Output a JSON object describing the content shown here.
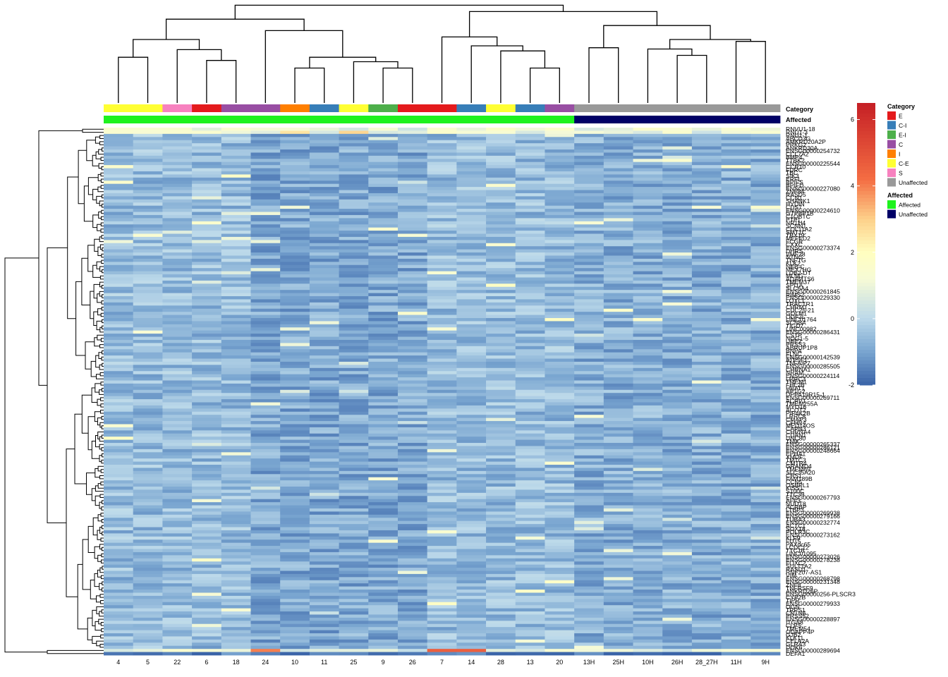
{
  "chart_data": {
    "type": "heatmap",
    "title": "",
    "color_scale": {
      "min": -2,
      "max": 6.5,
      "ticks": [
        -2,
        0,
        2,
        4,
        6
      ],
      "stops": [
        {
          "value": -2,
          "color": "#3a64a8"
        },
        {
          "value": -1,
          "color": "#79a5d0"
        },
        {
          "value": 0,
          "color": "#bcd9ea"
        },
        {
          "value": 1.2,
          "color": "#f7fbd6"
        },
        {
          "value": 2,
          "color": "#fffec0"
        },
        {
          "value": 3,
          "color": "#fdd08a"
        },
        {
          "value": 4.2,
          "color": "#f46d43"
        },
        {
          "value": 6.5,
          "color": "#c51f25"
        }
      ]
    },
    "columns": [
      "4",
      "5",
      "22",
      "6",
      "18",
      "24",
      "10",
      "11",
      "25",
      "9",
      "26",
      "7",
      "14",
      "28",
      "13",
      "20",
      "13H",
      "25H",
      "10H",
      "26H",
      "28_27H",
      "11H",
      "9H"
    ],
    "annotations": [
      {
        "name": "Category",
        "values": [
          "C-E",
          "C-E",
          "S",
          "E",
          "C",
          "C",
          "I",
          "C-I",
          "C-E",
          "E-I",
          "E",
          "E",
          "C-I",
          "C-E",
          "C-I",
          "C",
          "Unaffected",
          "Unaffected",
          "Unaffected",
          "Unaffected",
          "Unaffected",
          "Unaffected",
          "Unaffected"
        ]
      },
      {
        "name": "Affected",
        "values": [
          "Affected",
          "Affected",
          "Affected",
          "Affected",
          "Affected",
          "Affected",
          "Affected",
          "Affected",
          "Affected",
          "Affected",
          "Affected",
          "Affected",
          "Affected",
          "Affected",
          "Affected",
          "Affected",
          "Unaffected",
          "Unaffected",
          "Unaffected",
          "Unaffected",
          "Unaffected",
          "Unaffected",
          "Unaffected"
        ]
      }
    ],
    "legend": {
      "position": "right",
      "groups": [
        {
          "title": "Category",
          "items": [
            {
              "label": "E",
              "color": "#e41a1c"
            },
            {
              "label": "C-I",
              "color": "#377eb8"
            },
            {
              "label": "E-I",
              "color": "#4daf4a"
            },
            {
              "label": "C",
              "color": "#984ea3"
            },
            {
              "label": "I",
              "color": "#ff7f00"
            },
            {
              "label": "C-E",
              "color": "#ffff33"
            },
            {
              "label": "S",
              "color": "#f781bf"
            },
            {
              "label": "Unaffected",
              "color": "#999999"
            }
          ]
        },
        {
          "title": "Affected",
          "items": [
            {
              "label": "Affected",
              "color": "#1ef21e"
            },
            {
              "label": "Unaffected",
              "color": "#000066"
            }
          ]
        }
      ]
    },
    "row_labels": [
      "RNVU1-18",
      "RNU1-3",
      "RNU1-1",
      "ABCD3G",
      "AMKRD20A2P",
      "PRKG2",
      "ANKRD30A",
      "ENSG00000254732",
      "CCL7A2",
      "BMP4",
      "TTBK2",
      "ENSG00000225544",
      "CCR10",
      "FDRC",
      "TBC",
      "SIK3",
      "ERFL",
      "BPIFS",
      "BPIFD",
      "ENSG00000227080",
      "ZNF84",
      "RASD5",
      "CCN1",
      "SHANK1",
      "HYDIN",
      "CDS7",
      "ENSG00000224610",
      "GTPBP1B",
      "C1QBTC",
      "PTF1",
      "NR1H4",
      "SCNN1",
      "COL11A2",
      "SMT1C",
      "TBX19",
      "MEFED2",
      "FCGR",
      "CXXC",
      "ENSG00000273374",
      "DHRS",
      "VMF28",
      "NTNG",
      "TNFTG",
      "KLK2",
      "NEB-C",
      "MEX7HG",
      "LDB2-DT",
      "MLNG",
      "ADAMTS6",
      "TMEM37",
      "SPI1A",
      "SLC6A4",
      "ENSG00000261845",
      "RIMS2",
      "ENSG00000229330",
      "LOXL1",
      "TRACTR1",
      "CHRM1",
      "CDC25-21",
      "GOLM1",
      "ODF2L",
      "LINC01764",
      "SCN8A",
      "TIGD7",
      "LINC00982",
      "ENSG00000286431",
      "CSTP",
      "NOG1-5",
      "UBE2",
      "PRSS3",
      "ABRUP1P8",
      "BNPA",
      "FLNC",
      "ENSG00000142539",
      "ATP5F1",
      "TNFAIP7",
      "ENSG00000285505",
      "CHRNA1",
      "NRAM",
      "ENSG00000224114",
      "LRRC3",
      "TMEM1",
      "FHL2B",
      "HBAT1",
      "AP1G2",
      "DPPA19R15-1",
      "ENSG00000269711",
      "ACRV1",
      "TMEM255A",
      "MYO16",
      "ACOT2",
      "PIP4K2B",
      "LRRC8",
      "CMAP3",
      "CFHR4",
      "MED14OS",
      "CAPN3",
      "CHRNA4",
      "CDAN1",
      "UNC80",
      "TNIK",
      "ENSG00000265337",
      "ENSG00000286121",
      "ENSG00000248664",
      "EPHA1",
      "XMDF",
      "TMTC3",
      "CMTR4",
      "GRAMD4",
      "TMEM69",
      "SLC35A20",
      "CRS1",
      "FAM189B",
      "CCN5",
      "OSBPL1",
      "KISS1",
      "S100C",
      "TTC39",
      "ENSG00000267793",
      "AFF3",
      "NUDT8",
      "ACRBP",
      "LTBP3",
      "ENSG00000269938",
      "ENSG00000279166",
      "TUBA3",
      "ENSG00000232774",
      "ACTC1",
      "SOX18",
      "POLR3C",
      "ENSG00000273162",
      "KLF9",
      "FUT5",
      "PAXdc65",
      "LCDC12",
      "TTC16",
      "LINC01095",
      "ENSG00000273026",
      "ENSG00000278238",
      "FOXC2",
      "SULT1A2",
      "RASD1",
      "RNF207-AS1",
      "VIM",
      "ENSG00000268798",
      "ENSG00000231348",
      "ZNF8",
      "TNFRSF9",
      "ANKRD26P",
      "ENSG00000256-PLSCR3",
      "CYP2B",
      "TIPR",
      "ENSG00000279933",
      "OGN",
      "TRPS1",
      "CNTN6",
      "PRSS52",
      "ENSG00000228897",
      "ITGA8",
      "CLPS",
      "TMEM54",
      "ODAPP4P",
      "GJB2",
      "KLK11",
      "CELA2A",
      "GLRA3",
      "DOK6",
      "ENSG00000289694",
      "DEFA1"
    ],
    "row_dendrogram": "hierarchical clustering (complete), drawn as tree on left",
    "column_dendrogram": "hierarchical clustering (complete), drawn as tree on top"
  }
}
